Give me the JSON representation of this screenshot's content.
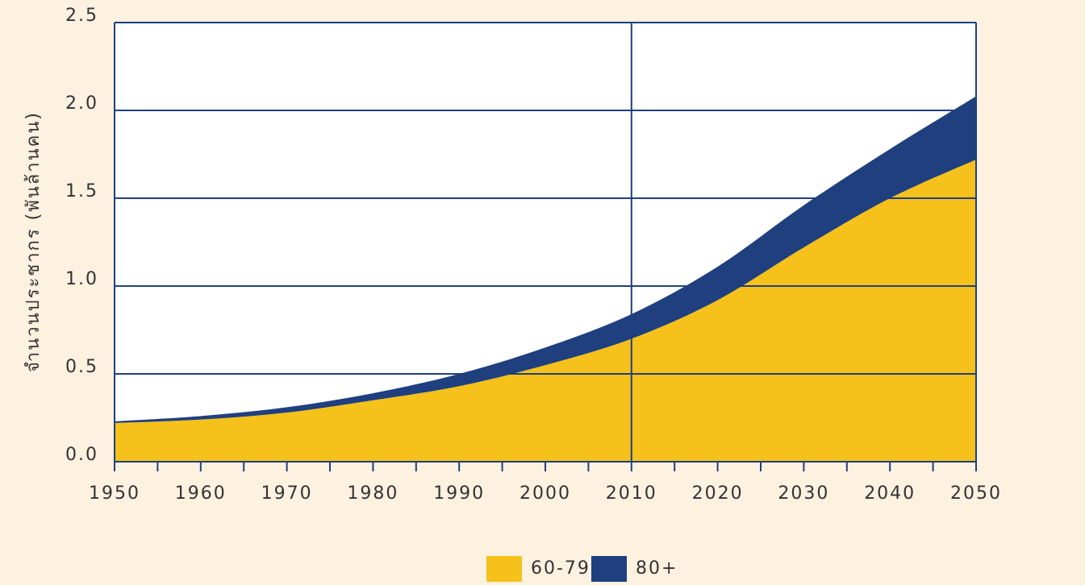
{
  "chart_data": {
    "type": "area",
    "stacked": true,
    "ylabel": "จำนวนประชากร (พันล้านคน)",
    "x": [
      1950,
      1960,
      1970,
      1980,
      1990,
      2000,
      2010,
      2020,
      2030,
      2040,
      2050
    ],
    "series": [
      {
        "name": "60-79",
        "color": "#f5c11a",
        "values": [
          0.22,
          0.24,
          0.28,
          0.35,
          0.43,
          0.55,
          0.7,
          0.92,
          1.22,
          1.5,
          1.72
        ]
      },
      {
        "name": "80+",
        "color": "#1f3f7f",
        "values": [
          0.01,
          0.02,
          0.03,
          0.04,
          0.07,
          0.1,
          0.14,
          0.19,
          0.24,
          0.28,
          0.36
        ]
      }
    ],
    "xlim": [
      1950,
      2050
    ],
    "xticks": [
      1950,
      1960,
      1970,
      1980,
      1990,
      2000,
      2010,
      2020,
      2030,
      2040,
      2050
    ],
    "ylim": [
      0,
      2.5
    ],
    "yticks": [
      {
        "value": 0,
        "label": "0.0"
      },
      0.5,
      {
        "value": 1,
        "label": "1.0"
      },
      1.5,
      {
        "value": 2,
        "label": "2.0"
      },
      2.5
    ],
    "vline": 2010,
    "grid": true,
    "legend": "bottom"
  }
}
